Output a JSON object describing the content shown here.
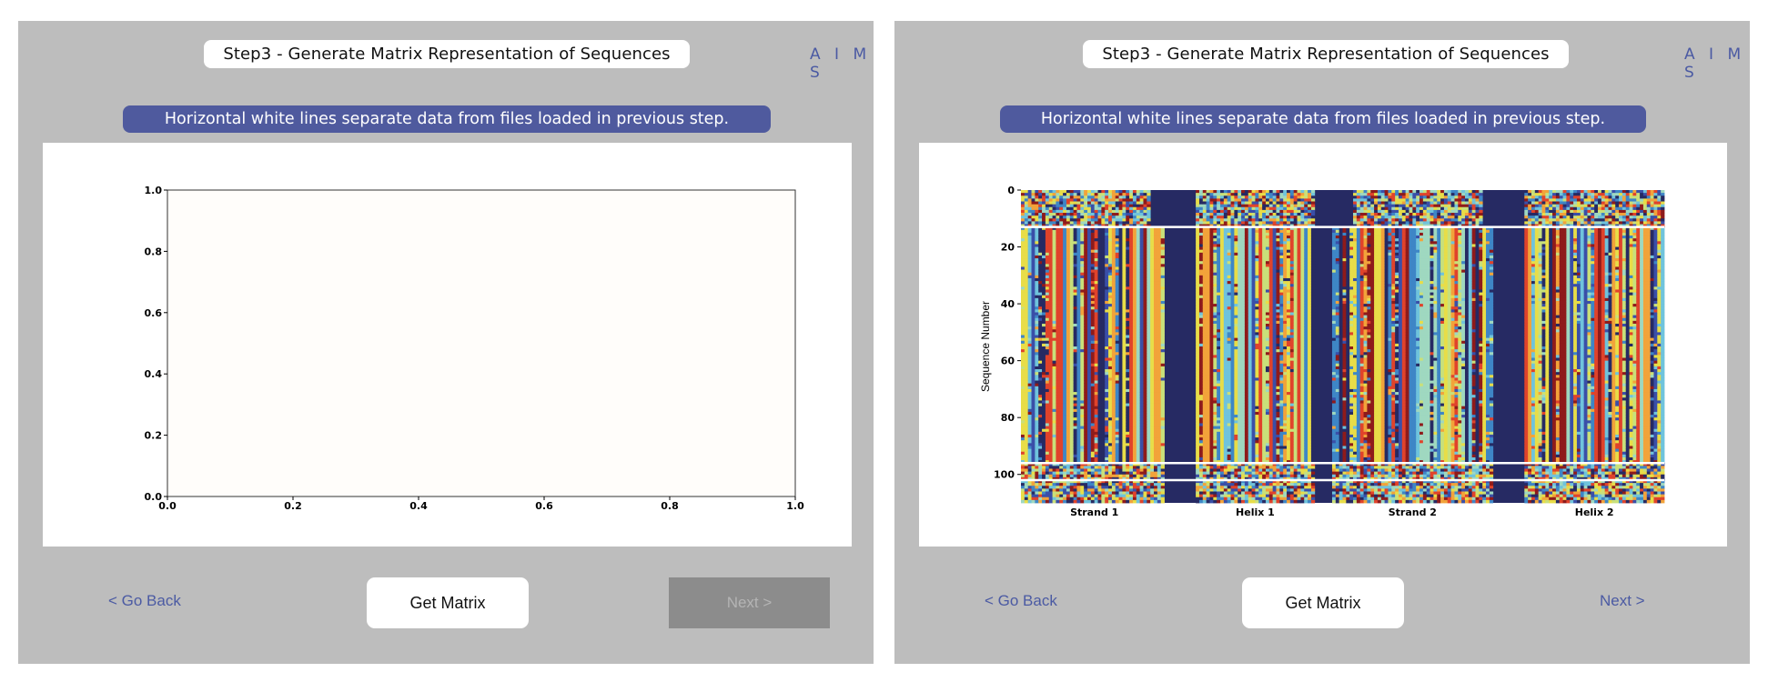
{
  "left_panel": {
    "title": "Step3 - Generate Matrix Representation of Sequences",
    "brand": "A I M S",
    "banner": "Horizontal white lines separate data from files loaded in previous step.",
    "back_label": "< Go Back",
    "get_matrix_label": "Get Matrix",
    "next_label": "Next >",
    "next_enabled": false
  },
  "right_panel": {
    "title": "Step3 - Generate Matrix Representation of Sequences",
    "brand": "A I M S",
    "banner": "Horizontal white lines separate data from files loaded in previous step.",
    "back_label": "< Go Back",
    "get_matrix_label": "Get Matrix",
    "next_label": "Next >",
    "next_enabled": true
  },
  "chart_data": [
    {
      "type": "line",
      "series": [],
      "xlim": [
        0,
        1
      ],
      "ylim": [
        0,
        1
      ],
      "x_ticks": [
        "0.0",
        "0.2",
        "0.4",
        "0.6",
        "0.8",
        "1.0"
      ],
      "y_ticks": [
        "0.0",
        "0.2",
        "0.4",
        "0.6",
        "0.8",
        "1.0"
      ],
      "background": "#fffdfa"
    },
    {
      "type": "heatmap",
      "ylabel": "Sequence Number",
      "y_ticks": [
        "0",
        "20",
        "40",
        "60",
        "80",
        "100"
      ],
      "ylim": [
        0,
        110
      ],
      "x_regions": [
        "Strand 1",
        "Helix 1",
        "Strand 2",
        "Helix 2"
      ],
      "num_columns": 184,
      "separator_rows": [
        13,
        96,
        102
      ],
      "colormap": [
        "#262a63",
        "#3a4fa8",
        "#3e86c6",
        "#6fc3dc",
        "#9fd8c0",
        "#c9e07a",
        "#e8dd48",
        "#f2a33a",
        "#e0432b",
        "#8e1b1b"
      ],
      "background_color": "#262a63"
    }
  ]
}
